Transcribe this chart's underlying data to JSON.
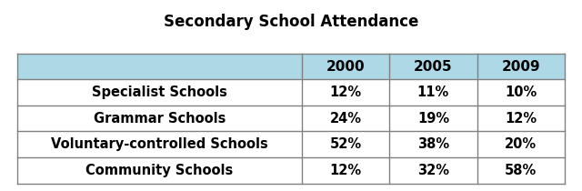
{
  "title": "Secondary School Attendance",
  "col_headers": [
    "",
    "2000",
    "2005",
    "2009"
  ],
  "rows": [
    [
      "Specialist Schools",
      "12%",
      "11%",
      "10%"
    ],
    [
      "Grammar Schools",
      "24%",
      "19%",
      "12%"
    ],
    [
      "Voluntary-controlled Schools",
      "52%",
      "38%",
      "20%"
    ],
    [
      "Community Schools",
      "12%",
      "32%",
      "58%"
    ]
  ],
  "header_bg": "#add8e6",
  "row_bg": "#ffffff",
  "border_color": "#808080",
  "title_fontsize": 12,
  "header_fontsize": 11,
  "cell_fontsize": 10.5,
  "figsize": [
    6.4,
    2.1
  ],
  "dpi": 100
}
